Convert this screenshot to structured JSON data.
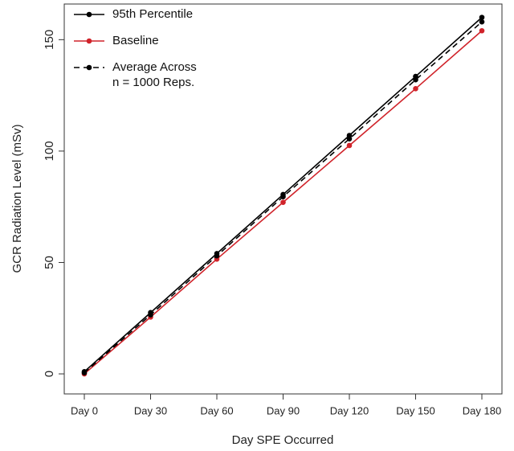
{
  "chart_data": {
    "type": "line",
    "x_label": "Day SPE Occurred",
    "y_label": "GCR Radiation Level (mSv)",
    "categories": [
      "Day 0",
      "Day 30",
      "Day 60",
      "Day 90",
      "Day 120",
      "Day 150",
      "Day 180"
    ],
    "series": [
      {
        "name": "95th Percentile",
        "color": "#000000",
        "dash": false,
        "values": [
          1,
          27.5,
          54,
          80.5,
          107,
          133.5,
          160
        ]
      },
      {
        "name": "Baseline",
        "color": "#d0232a",
        "dash": false,
        "values": [
          0,
          25.5,
          51.5,
          77,
          102.5,
          128,
          154
        ]
      },
      {
        "name": "Average Across\nn = 1000 Reps.",
        "color": "#000000",
        "dash": true,
        "values": [
          0.5,
          26.5,
          53,
          79.5,
          105.5,
          132,
          158
        ]
      }
    ],
    "ylim": [
      -9,
      166
    ],
    "yticks": [
      0,
      50,
      100,
      150
    ],
    "legend": "top-left",
    "grid": false
  }
}
